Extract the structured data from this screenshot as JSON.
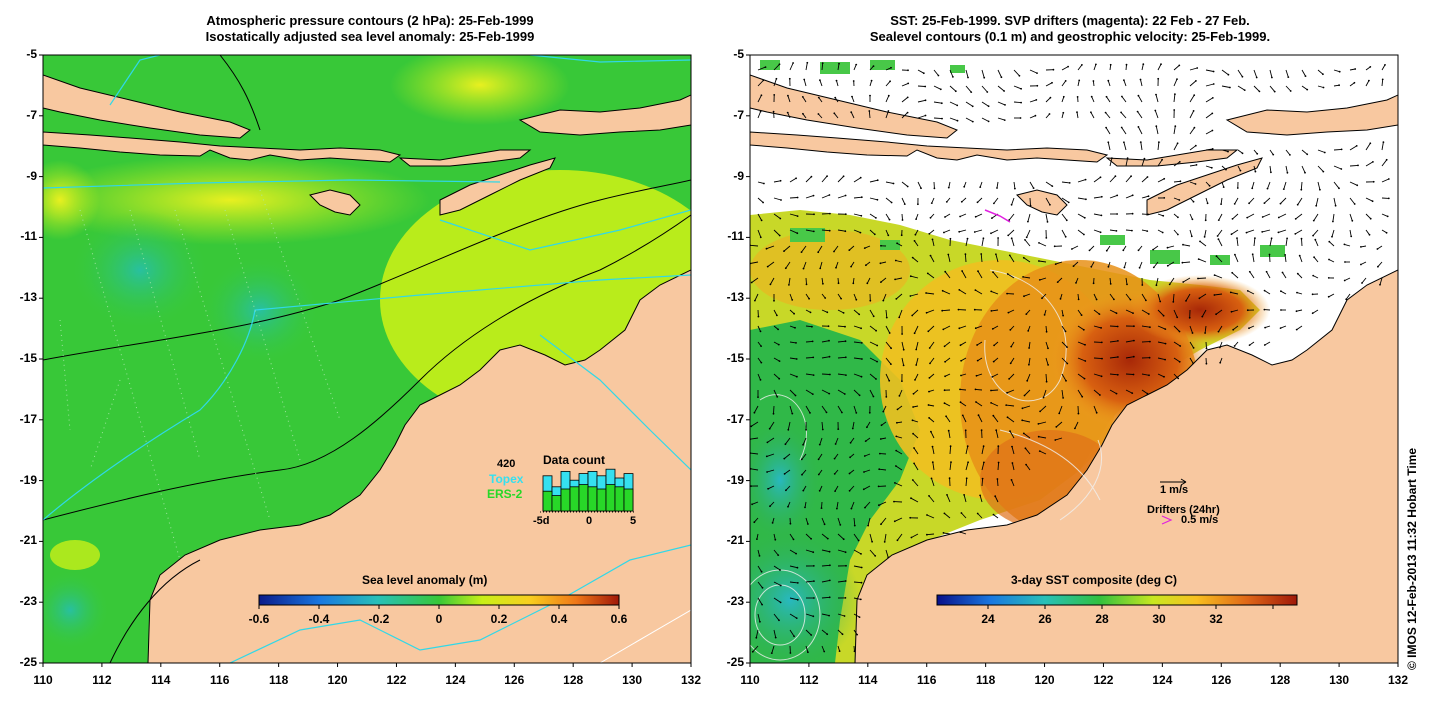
{
  "left_panel": {
    "title_line1": "Atmospheric pressure contours (2 hPa): 25-Feb-1999",
    "title_line2": "Isostatically adjusted sea level anomaly: 25-Feb-1999",
    "colorbar_title": "Sea level anomaly (m)",
    "colorbar_ticks": [
      "-0.6",
      "-0.4",
      "-0.2",
      "0",
      "0.2",
      "0.4",
      "0.6"
    ],
    "data_count": {
      "title": "Data count",
      "max_label": "420",
      "topex_label": "Topex",
      "ers_label": "ERS-2",
      "x_labels": [
        "-5d",
        "0",
        "5"
      ],
      "topex_color": "#35e0f0",
      "ers_color": "#28d828",
      "topex_values": [
        0.8,
        0.55,
        0.9,
        0.7,
        0.85,
        0.9,
        0.8,
        0.95,
        0.75,
        0.85
      ],
      "ers_values": [
        0.45,
        0.35,
        0.5,
        0.55,
        0.6,
        0.55,
        0.5,
        0.6,
        0.55,
        0.5
      ]
    }
  },
  "right_panel": {
    "title_line1": "SST: 25-Feb-1999. SVP drifters (magenta): 22 Feb - 27 Feb.",
    "title_line2": "Sealevel contours (0.1 m) and geostrophic velocity: 25-Feb-1999.",
    "colorbar_title": "3-day SST composite (deg C)",
    "colorbar_ticks": [
      "24",
      "26",
      "28",
      "30",
      "32"
    ],
    "vector_scale_label": "1 m/s",
    "drifters_label": "Drifters (24hr)",
    "drifter_scale_label": "0.5 m/s",
    "drifter_color": "#e020e0"
  },
  "axes": {
    "y_ticks": [
      "-5",
      "-7",
      "-9",
      "-11",
      "-13",
      "-15",
      "-17",
      "-19",
      "-21",
      "-23",
      "-25"
    ],
    "x_ticks": [
      "110",
      "112",
      "114",
      "116",
      "118",
      "120",
      "122",
      "124",
      "126",
      "128",
      "130",
      "132"
    ]
  },
  "colors": {
    "land": "#f8c8a0",
    "sea_anomaly_base": "#38c838",
    "cloud_white": "#ffffff",
    "sst_warm": "#e88820",
    "sst_hot": "#b83008"
  },
  "copyright": "© IMOS 12-Feb-2013 11:32 Hobart Time"
}
